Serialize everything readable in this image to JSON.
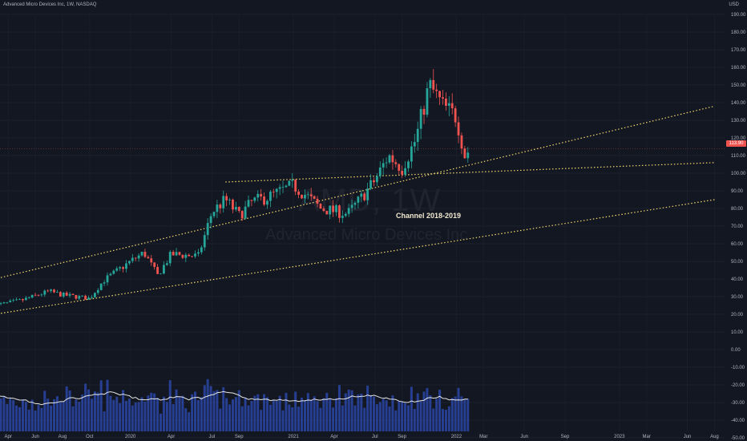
{
  "header": {
    "title": "Advanced Micro Devices Inc, 1W, NASDAQ"
  },
  "watermark": {
    "symbol": "AMD, 1W",
    "name": "Advanced Micro Devices Inc"
  },
  "annotation": {
    "text": "Channel 2018-2019"
  },
  "colors": {
    "up": "#26a69a",
    "down": "#ef5350",
    "volume": "#2b47a6",
    "channel": "#f5d76e",
    "ma": "#e6e6e6",
    "bg": "#131722"
  },
  "chart_data": {
    "type": "candlestick",
    "price_axis": {
      "unit": "USD",
      "ticks": [
        "190.00",
        "180.00",
        "170.00",
        "160.00",
        "150.00",
        "140.00",
        "130.00",
        "120.00",
        "110.00",
        "100.00",
        "90.00",
        "80.00",
        "70.00",
        "60.00",
        "50.00",
        "40.00",
        "30.00",
        "20.00",
        "10.00",
        "0.00",
        "-10.00",
        "-20.00",
        "-30.00",
        "-40.00",
        "-50.00"
      ],
      "tick_values": [
        190,
        180,
        170,
        160,
        150,
        140,
        130,
        120,
        110,
        100,
        90,
        80,
        70,
        60,
        50,
        40,
        30,
        20,
        10,
        0,
        -10,
        -20,
        -30,
        -40,
        -50
      ],
      "current_price": "113.90"
    },
    "time_axis": [
      "Apr",
      "Jun",
      "Aug",
      "Oct",
      "2020",
      "Apr",
      "Jul",
      "Sep",
      "2021",
      "Apr",
      "Jul",
      "Sep",
      "2022",
      "Mar",
      "Jun",
      "Sep",
      "2023",
      "Mar",
      "Jun",
      "Aug"
    ],
    "price_path": [
      {
        "t": "2019-03",
        "p": 25
      },
      {
        "t": "2019-05",
        "p": 28
      },
      {
        "t": "2019-07",
        "p": 33
      },
      {
        "t": "2019-08",
        "p": 31
      },
      {
        "t": "2019-10",
        "p": 29
      },
      {
        "t": "2019-11",
        "p": 39
      },
      {
        "t": "2020-01",
        "p": 50
      },
      {
        "t": "2020-02",
        "p": 55
      },
      {
        "t": "2020-03",
        "p": 42
      },
      {
        "t": "2020-04",
        "p": 54
      },
      {
        "t": "2020-06",
        "p": 53
      },
      {
        "t": "2020-07",
        "p": 78
      },
      {
        "t": "2020-08",
        "p": 85
      },
      {
        "t": "2020-09",
        "p": 76
      },
      {
        "t": "2020-10",
        "p": 84
      },
      {
        "t": "2020-11",
        "p": 86
      },
      {
        "t": "2021-01",
        "p": 93
      },
      {
        "t": "2021-02",
        "p": 87
      },
      {
        "t": "2021-03",
        "p": 80
      },
      {
        "t": "2021-05",
        "p": 77
      },
      {
        "t": "2021-06",
        "p": 86
      },
      {
        "t": "2021-07",
        "p": 96
      },
      {
        "t": "2021-08",
        "p": 110
      },
      {
        "t": "2021-09",
        "p": 103
      },
      {
        "t": "2021-10",
        "p": 119
      },
      {
        "t": "2021-11",
        "p": 150
      },
      {
        "t": "2021-12",
        "p": 138
      },
      {
        "t": "2022-01",
        "p": 132
      },
      {
        "t": "2022-01-20",
        "p": 110
      },
      {
        "t": "2022-02",
        "p": 114
      }
    ],
    "channel_lines": [
      {
        "name": "upper",
        "x": [
          "2019-03",
          "2023-08"
        ],
        "y": [
          40,
          138
        ]
      },
      {
        "name": "middle",
        "x": [
          "2020-08",
          "2023-08"
        ],
        "y": [
          95,
          106
        ]
      },
      {
        "name": "lower",
        "x": [
          "2019-03",
          "2023-08"
        ],
        "y": [
          20,
          85
        ]
      }
    ],
    "volume": {
      "shown_as": "histogram",
      "with_moving_average": true
    }
  }
}
